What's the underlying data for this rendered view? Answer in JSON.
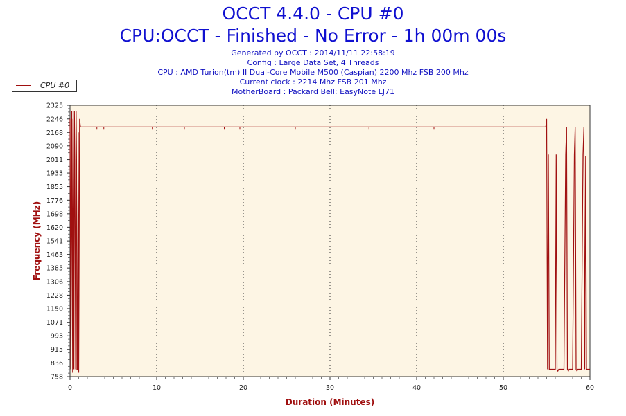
{
  "header": {
    "title": "OCCT 4.4.0 - CPU #0",
    "subtitle": "CPU:OCCT - Finished - No Error - 1h 00m 00s",
    "info_lines": [
      "Generated by OCCT : 2014/11/11 22:58:19",
      "Config : Large Data Set, 4 Threads",
      "CPU : AMD Turion(tm) II Dual-Core Mobile M500 (Caspian) 2200 Mhz FSB 200 Mhz",
      "Current clock : 2214 Mhz FSB 201 Mhz",
      "MotherBoard : Packard Bell: EasyNote LJ71"
    ]
  },
  "legend": {
    "label": "CPU #0"
  },
  "chart_data": {
    "type": "line",
    "xlabel": "Duration (Minutes)",
    "ylabel": "Frequency (MHz)",
    "xlim": [
      0,
      60
    ],
    "ylim": [
      758,
      2325
    ],
    "xticks": [
      0,
      10,
      20,
      30,
      40,
      50,
      60
    ],
    "yticks": [
      758,
      836,
      915,
      993,
      1071,
      1150,
      1228,
      1306,
      1385,
      1463,
      1541,
      1620,
      1698,
      1776,
      1855,
      1933,
      2011,
      2090,
      2168,
      2246,
      2325
    ],
    "grid": "vertical-dotted",
    "series": [
      {
        "name": "CPU #0",
        "color": "#a01010",
        "x": [
          0,
          0.1,
          0.2,
          0.3,
          0.35,
          0.45,
          0.5,
          0.55,
          0.65,
          0.7,
          0.75,
          0.8,
          0.85,
          0.95,
          1.0,
          1.1,
          1.2,
          2,
          3,
          4,
          5,
          10,
          13,
          20,
          26,
          30,
          40,
          44,
          50,
          54.9,
          55.0,
          55.1,
          55.2,
          55.3,
          55.4,
          56.0,
          56.1,
          56.2,
          56.3,
          56.4,
          57.0,
          57.2,
          57.3,
          57.4,
          57.5,
          57.6,
          58.0,
          58.2,
          58.3,
          58.4,
          58.5,
          58.6,
          59.0,
          59.2,
          59.3,
          59.4,
          59.5,
          59.6,
          60
        ],
        "values": [
          2246,
          800,
          2290,
          780,
          2246,
          800,
          2290,
          2011,
          800,
          2290,
          2011,
          800,
          800,
          2168,
          780,
          2246,
          2200,
          2200,
          2200,
          2200,
          2200,
          2200,
          2200,
          2200,
          2200,
          2200,
          2200,
          2200,
          2200,
          2200,
          2246,
          800,
          2040,
          800,
          800,
          800,
          2040,
          800,
          790,
          800,
          800,
          2040,
          2200,
          800,
          790,
          800,
          800,
          2040,
          2200,
          800,
          790,
          800,
          800,
          2040,
          2200,
          800,
          2030,
          800,
          800
        ]
      }
    ]
  }
}
